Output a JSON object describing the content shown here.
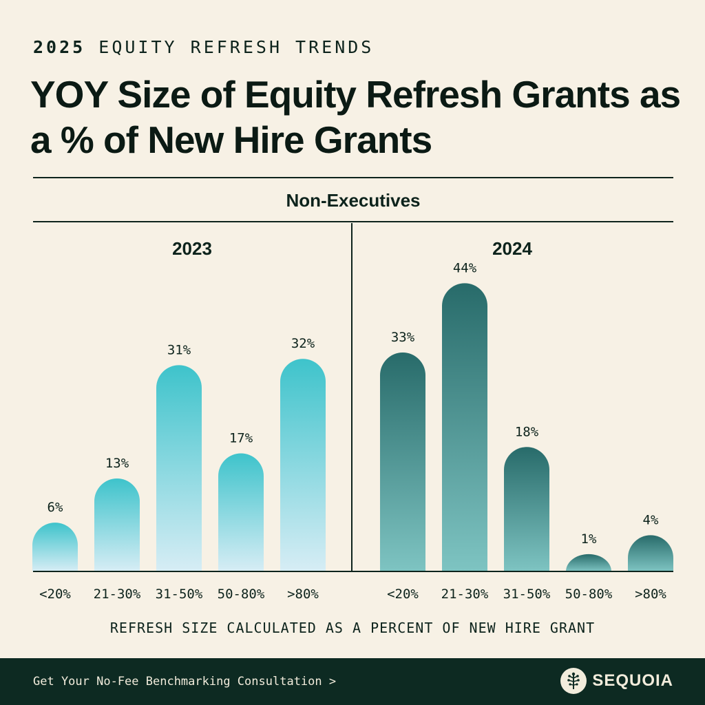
{
  "header": {
    "eyebrow_year": "2025",
    "eyebrow_text": "EQUITY REFRESH TRENDS",
    "title": "YOY Size of Equity Refresh Grants as a % of New Hire Grants"
  },
  "section_label": "Non-Executives",
  "chart_data": [
    {
      "type": "bar",
      "title": "2023",
      "categories": [
        "<20%",
        "21-30%",
        "31-50%",
        "50-80%",
        ">80%"
      ],
      "values": [
        6,
        13,
        31,
        17,
        32
      ],
      "value_labels": [
        "6%",
        "13%",
        "31%",
        "17%",
        "32%"
      ],
      "ylim": [
        0,
        44
      ],
      "colors": {
        "top": "#3ec3cb",
        "bottom": "#d7edf5"
      }
    },
    {
      "type": "bar",
      "title": "2024",
      "categories": [
        "<20%",
        "21-30%",
        "31-50%",
        "50-80%",
        ">80%"
      ],
      "values": [
        33,
        44,
        18,
        1,
        4
      ],
      "value_labels": [
        "33%",
        "44%",
        "18%",
        "1%",
        "4%"
      ],
      "ylim": [
        0,
        44
      ],
      "colors": {
        "top": "#286b6a",
        "bottom": "#7ec4c2"
      }
    }
  ],
  "caption": "REFRESH SIZE CALCULATED AS A PERCENT OF NEW HIRE GRANT",
  "footer": {
    "cta": "Get Your No-Fee Benchmarking Consultation >",
    "brand": "SEQUOIA",
    "logo_icon": "sequoia-tree-icon",
    "background": "#0d2a22"
  }
}
